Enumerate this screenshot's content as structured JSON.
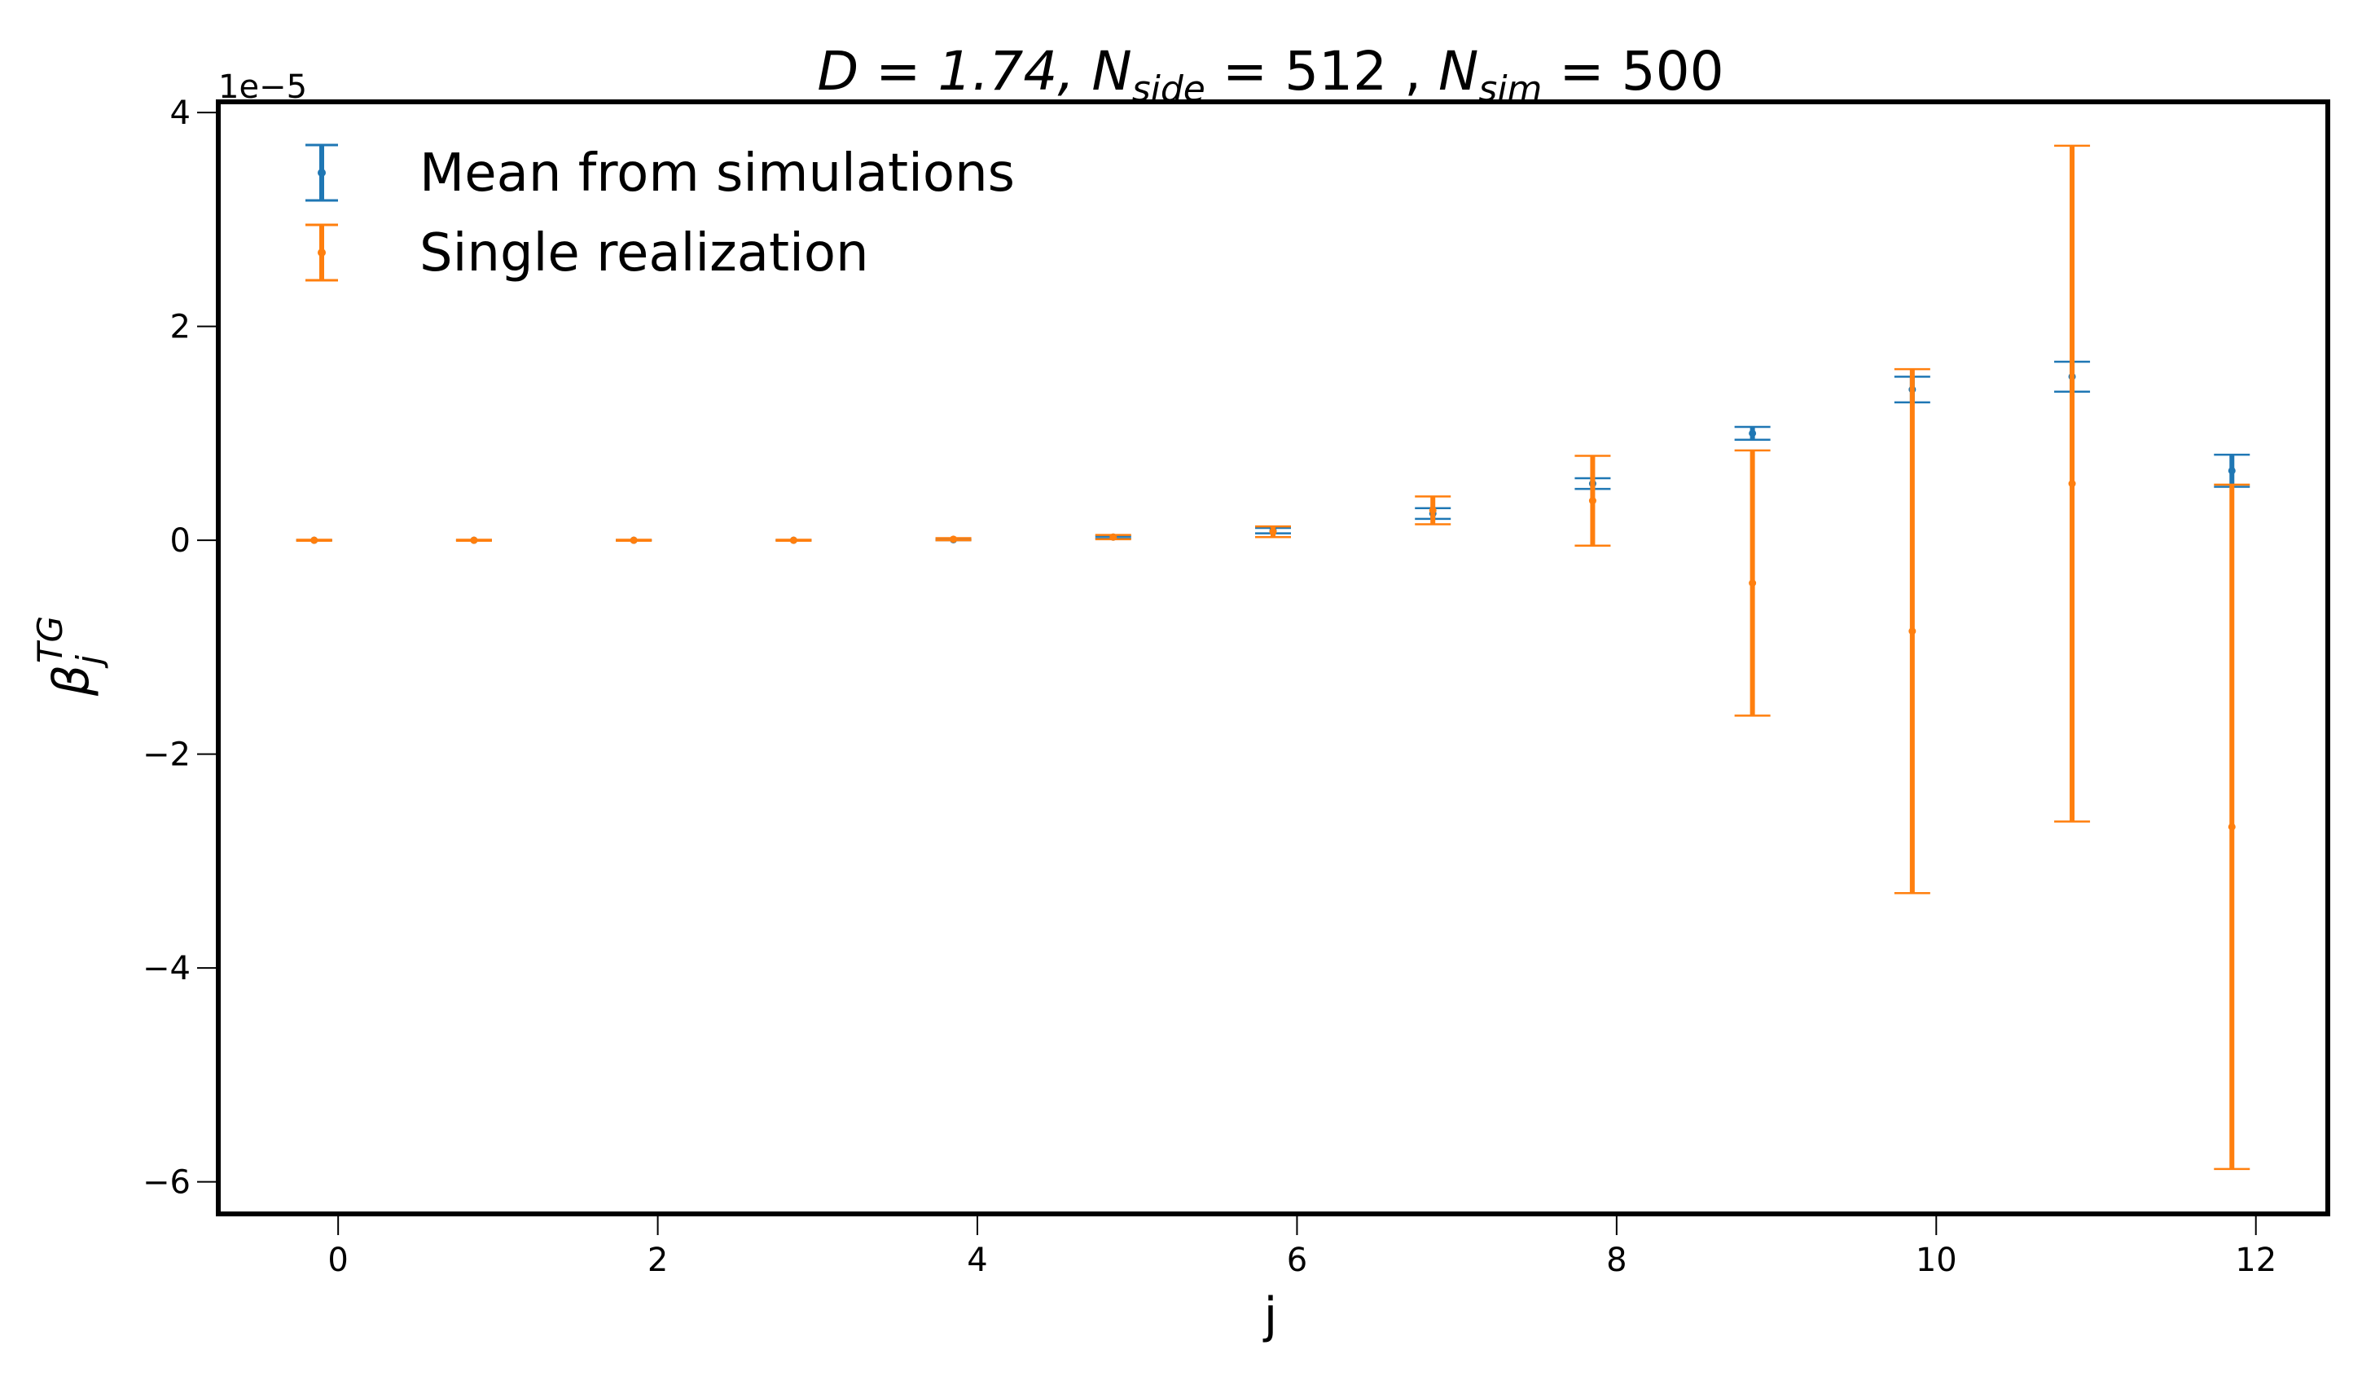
{
  "chart_data": {
    "type": "errorbar",
    "title": {
      "prefix": "D = 1.74,  ",
      "n_side_symbol": "N",
      "n_side_sub": "side",
      "n_side_value": " = 512 ,  ",
      "n_sim_symbol": "N",
      "n_sim_sub": "sim",
      "n_sim_value": " = 500"
    },
    "xlabel": "j",
    "ylabel": {
      "symbol": "β",
      "sub": "j",
      "sup": "TG"
    },
    "offset_text": "1e−5",
    "xlim": [
      -0.75,
      12.45
    ],
    "ylim": [
      -6.3,
      4.1
    ],
    "y_scale": 1e-05,
    "xticks": [
      0,
      2,
      4,
      6,
      8,
      10,
      12
    ],
    "xtick_labels": [
      "0",
      "2",
      "4",
      "6",
      "8",
      "10",
      "12"
    ],
    "yticks": [
      -6,
      -4,
      -2,
      0,
      2,
      4
    ],
    "ytick_labels": [
      "−6",
      "−4",
      "−2",
      "0",
      "2",
      "4"
    ],
    "legend_position": "top-left",
    "series": [
      {
        "name": "Mean from simulations",
        "color": "#1f77b4",
        "x": [
          -0.15,
          0.85,
          1.85,
          2.85,
          3.85,
          4.85,
          5.85,
          6.85,
          7.85,
          8.85,
          9.85,
          10.85,
          11.85
        ],
        "y": [
          0.0,
          0.0,
          0.0,
          0.0,
          0.005,
          0.03,
          0.09,
          0.25,
          0.53,
          1.0,
          1.41,
          1.53,
          0.65
        ],
        "yerr": [
          0.003,
          0.003,
          0.003,
          0.003,
          0.005,
          0.01,
          0.025,
          0.05,
          0.05,
          0.06,
          0.12,
          0.14,
          0.15
        ]
      },
      {
        "name": "Single realization",
        "color": "#ff7f0e",
        "x": [
          -0.15,
          0.85,
          1.85,
          2.85,
          3.85,
          4.85,
          5.85,
          6.85,
          7.85,
          8.85,
          9.85,
          10.85,
          11.85
        ],
        "y": [
          0.0,
          0.0,
          0.0,
          0.0,
          0.01,
          0.03,
          0.08,
          0.28,
          0.37,
          -0.4,
          -0.85,
          0.53,
          -2.68
        ],
        "yerr": [
          0.005,
          0.005,
          0.005,
          0.005,
          0.01,
          0.02,
          0.05,
          0.13,
          0.42,
          1.24,
          2.45,
          3.16,
          3.2
        ]
      }
    ]
  }
}
